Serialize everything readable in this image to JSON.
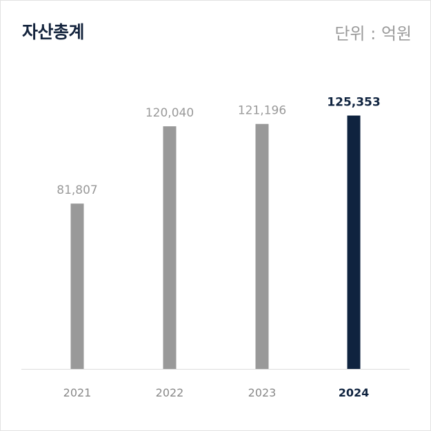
{
  "title": "자산총계",
  "unit": "단위 : 억원",
  "colors": {
    "normal_bar": "#999999",
    "highlight_bar": "#0f233f",
    "baseline": "#dddddd"
  },
  "chart_data": {
    "type": "bar",
    "categories": [
      "2021",
      "2022",
      "2023",
      "2024"
    ],
    "values": [
      81807,
      120040,
      121196,
      125353
    ],
    "value_labels": [
      "81,807",
      "120,040",
      "121,196",
      "125,353"
    ],
    "highlight_index": 3,
    "title": "자산총계",
    "xlabel": "",
    "ylabel": "",
    "ylim": [
      0,
      160000
    ],
    "grid": false
  }
}
